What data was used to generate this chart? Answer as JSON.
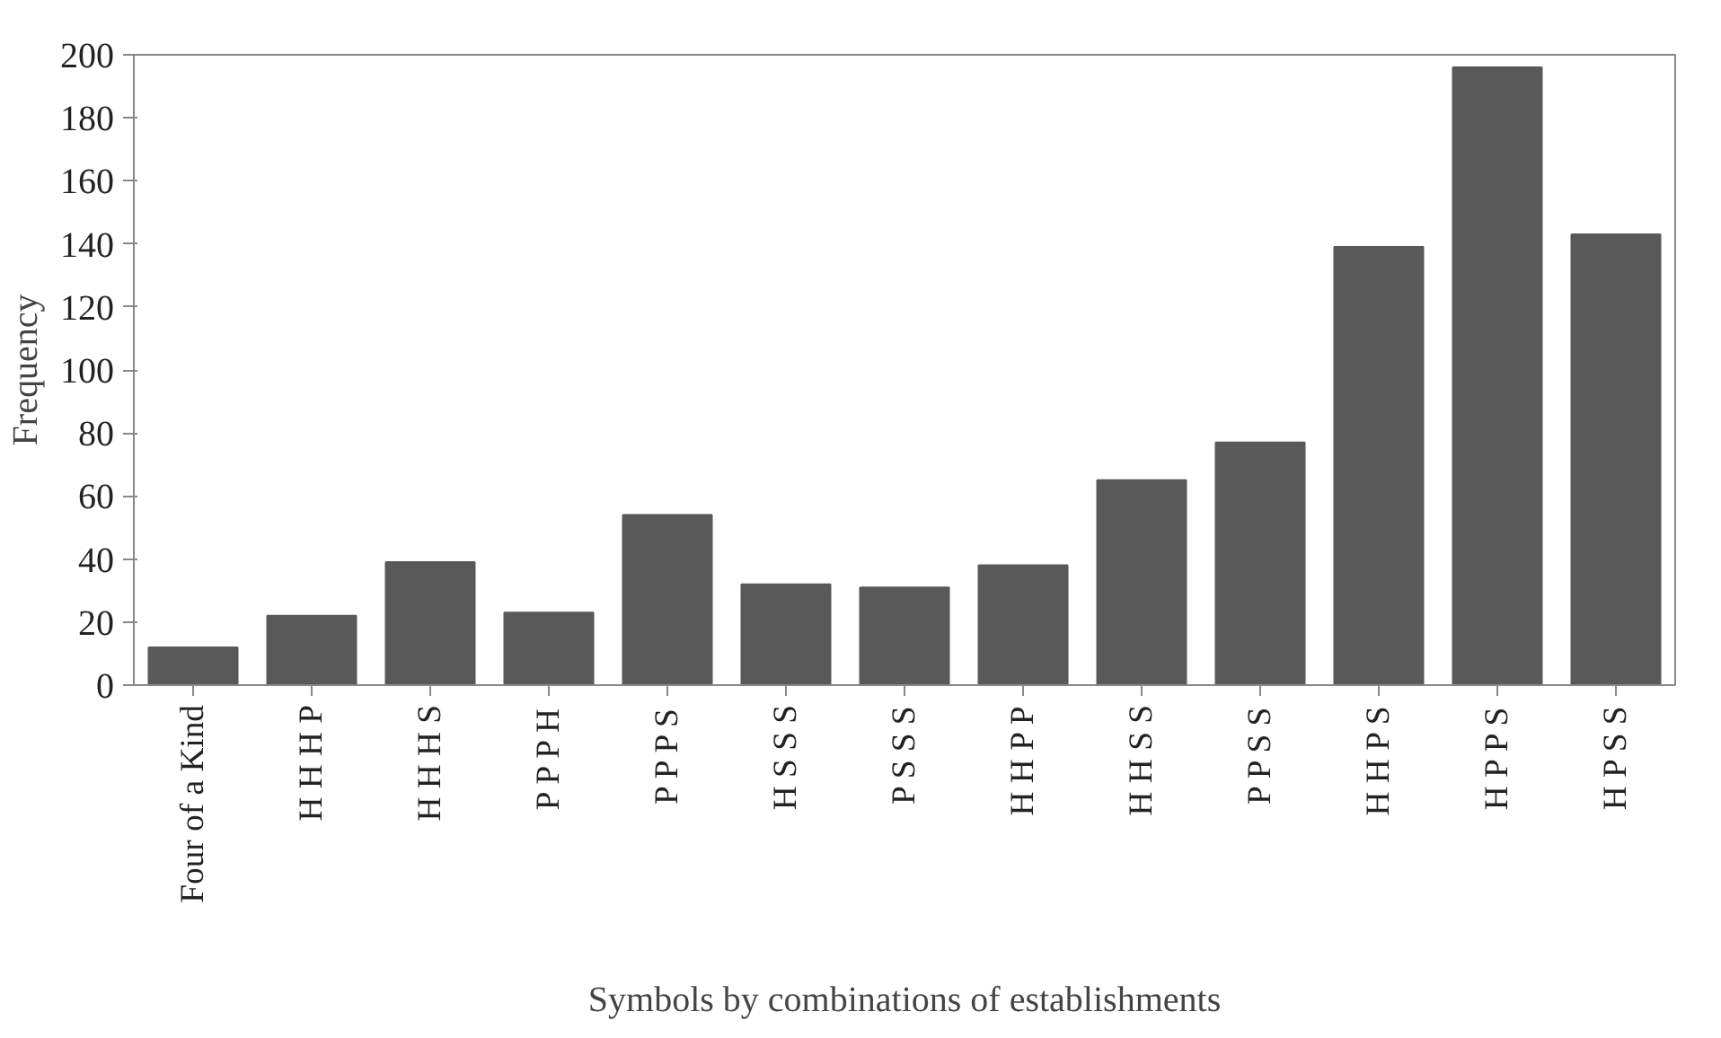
{
  "chart_data": {
    "type": "bar",
    "xlabel": "Symbols by combinations of establishments",
    "ylabel": "Frequency",
    "categories": [
      "Four of a Kind",
      "H H H P",
      "H H H S",
      "P P P H",
      "P P P S",
      "H S S S",
      "P S S S",
      "H H P P",
      "H H S S",
      "P P S S",
      "H H P S",
      "H P P S",
      "H P S S"
    ],
    "values": [
      12,
      22,
      39,
      23,
      54,
      32,
      31,
      38,
      65,
      77,
      139,
      196,
      143
    ],
    "color": "#595959",
    "ylim": [
      0,
      200
    ],
    "yticks": [
      0,
      20,
      40,
      60,
      80,
      100,
      120,
      140,
      160,
      180,
      200
    ],
    "grid": false
  }
}
